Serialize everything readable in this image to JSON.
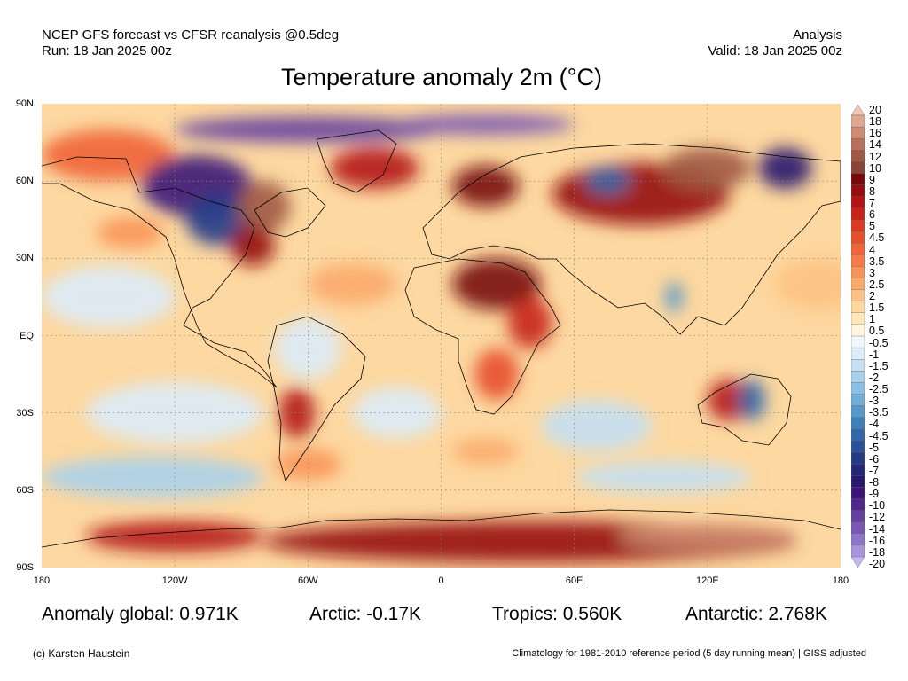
{
  "header": {
    "line1": "NCEP GFS forecast vs CFSR reanalysis @0.5deg",
    "line2": "Run: 18 Jan 2025 00z",
    "right1": "Analysis",
    "right2": "Valid: 18 Jan 2025 00z"
  },
  "title": "Temperature anomaly 2m (°C)",
  "lat_labels": [
    "90N",
    "60N",
    "30N",
    "EQ",
    "30S",
    "60S",
    "90S"
  ],
  "lon_labels": [
    "180",
    "120W",
    "60W",
    "0",
    "60E",
    "120E",
    "180"
  ],
  "colorbar": {
    "labels": [
      "20",
      "18",
      "16",
      "14",
      "12",
      "10",
      "9",
      "8",
      "7",
      "6",
      "5",
      "4.5",
      "4",
      "3.5",
      "3",
      "2.5",
      "2",
      "1.5",
      "1",
      "0.5",
      "-0.5",
      "-1",
      "-1.5",
      "-2",
      "-2.5",
      "-3",
      "-3.5",
      "-4",
      "-4.5",
      "-5",
      "-6",
      "-7",
      "-8",
      "-9",
      "-10",
      "-12",
      "-14",
      "-16",
      "-18",
      "-20"
    ],
    "colors": [
      "#f0c8b4",
      "#e0a890",
      "#d08c70",
      "#b87058",
      "#a05a44",
      "#8a4434",
      "#780a0a",
      "#960f0f",
      "#b41414",
      "#c82319",
      "#d73c23",
      "#e5502d",
      "#f06437",
      "#f57a46",
      "#f89357",
      "#fbaa6c",
      "#fdc283",
      "#fed89d",
      "#fee8b8",
      "#fff5dc",
      "#f0f8ff",
      "#dcecf8",
      "#c4e0f2",
      "#a8d0eb",
      "#8cc0e2",
      "#70aed8",
      "#5698ca",
      "#3e80bb",
      "#3268aa",
      "#2a5298",
      "#243c88",
      "#222878",
      "#28196e",
      "#3c1478",
      "#50288c",
      "#6440a0",
      "#7858b4",
      "#8c74c8",
      "#a894dc",
      "#c8b4f0"
    ]
  },
  "stats": {
    "global": "Anomaly global: 0.971K",
    "arctic": "Arctic: -0.17K",
    "tropics": "Tropics: 0.560K",
    "antarctic": "Antarctic: 2.768K"
  },
  "footer": {
    "credit": "(c) Karsten Haustein",
    "climatology": "Climatology for 1981-2010 reference period (5 day running mean) | GISS adjusted"
  },
  "map_blobs": [
    {
      "lon": -150,
      "lat": 70,
      "rx": 30,
      "ry": 10,
      "c": 12
    },
    {
      "lon": -110,
      "lat": 58,
      "rx": 25,
      "ry": 12,
      "c": 33
    },
    {
      "lon": -100,
      "lat": 45,
      "rx": 15,
      "ry": 10,
      "c": 30
    },
    {
      "lon": -80,
      "lat": 50,
      "rx": 12,
      "ry": 10,
      "c": 4
    },
    {
      "lon": -85,
      "lat": 35,
      "rx": 10,
      "ry": 8,
      "c": 7
    },
    {
      "lon": -60,
      "lat": 80,
      "rx": 60,
      "ry": 5,
      "c": 35
    },
    {
      "lon": 20,
      "lat": 82,
      "rx": 40,
      "ry": 4,
      "c": 36
    },
    {
      "lon": -30,
      "lat": 65,
      "rx": 20,
      "ry": 8,
      "c": 8
    },
    {
      "lon": 20,
      "lat": 58,
      "rx": 15,
      "ry": 8,
      "c": 6
    },
    {
      "lon": 90,
      "lat": 55,
      "rx": 40,
      "ry": 12,
      "c": 7
    },
    {
      "lon": 75,
      "lat": 60,
      "rx": 10,
      "ry": 5,
      "c": 28
    },
    {
      "lon": 120,
      "lat": 65,
      "rx": 20,
      "ry": 8,
      "c": 4
    },
    {
      "lon": 155,
      "lat": 65,
      "rx": 12,
      "ry": 8,
      "c": 32
    },
    {
      "lon": 25,
      "lat": 20,
      "rx": 20,
      "ry": 10,
      "c": 6
    },
    {
      "lon": 40,
      "lat": 5,
      "rx": 10,
      "ry": 10,
      "c": 9
    },
    {
      "lon": -60,
      "lat": -5,
      "rx": 15,
      "ry": 12,
      "c": 21
    },
    {
      "lon": -65,
      "lat": -30,
      "rx": 8,
      "ry": 10,
      "c": 8
    },
    {
      "lon": 25,
      "lat": -15,
      "rx": 10,
      "ry": 10,
      "c": 11
    },
    {
      "lon": 130,
      "lat": -25,
      "rx": 10,
      "ry": 8,
      "c": 8
    },
    {
      "lon": 140,
      "lat": -25,
      "rx": 6,
      "ry": 8,
      "c": 28
    },
    {
      "lon": 105,
      "lat": 15,
      "rx": 4,
      "ry": 6,
      "c": 26
    },
    {
      "lon": -150,
      "lat": 15,
      "rx": 30,
      "ry": 12,
      "c": 21
    },
    {
      "lon": -120,
      "lat": -30,
      "rx": 40,
      "ry": 12,
      "c": 21
    },
    {
      "lon": -20,
      "lat": -30,
      "rx": 20,
      "ry": 10,
      "c": 21
    },
    {
      "lon": 70,
      "lat": -35,
      "rx": 25,
      "ry": 10,
      "c": 22
    },
    {
      "lon": -130,
      "lat": -55,
      "rx": 50,
      "ry": 8,
      "c": 23
    },
    {
      "lon": 100,
      "lat": -55,
      "rx": 40,
      "ry": 6,
      "c": 22
    },
    {
      "lon": -60,
      "lat": -50,
      "rx": 15,
      "ry": 6,
      "c": 14
    },
    {
      "lon": 20,
      "lat": -45,
      "rx": 15,
      "ry": 5,
      "c": 15
    },
    {
      "lon": -140,
      "lat": 40,
      "rx": 15,
      "ry": 6,
      "c": 14
    },
    {
      "lon": 40,
      "lat": -80,
      "rx": 120,
      "ry": 8,
      "c": 7
    },
    {
      "lon": 120,
      "lat": -78,
      "rx": 40,
      "ry": 5,
      "c": 2
    },
    {
      "lon": -120,
      "lat": -78,
      "rx": 40,
      "ry": 6,
      "c": 8
    },
    {
      "lon": 170,
      "lat": 20,
      "rx": 20,
      "ry": 10,
      "c": 16
    },
    {
      "lon": -40,
      "lat": 20,
      "rx": 20,
      "ry": 8,
      "c": 15
    }
  ]
}
